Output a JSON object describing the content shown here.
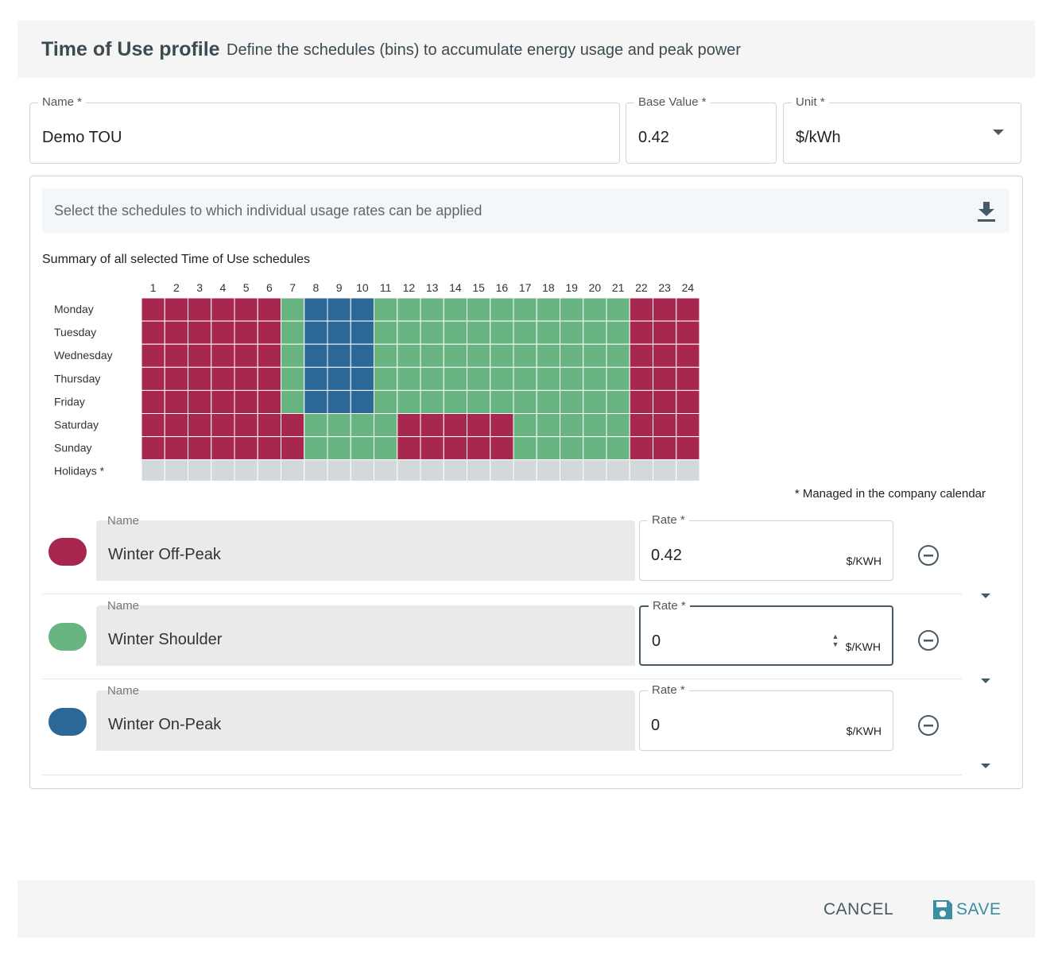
{
  "header": {
    "title": "Time of Use profile",
    "subtitle": "Define the schedules (bins) to accumulate energy usage and peak power"
  },
  "fields": {
    "name": {
      "label": "Name *",
      "value": "Demo TOU"
    },
    "base_value": {
      "label": "Base Value *",
      "value": 0.42
    },
    "unit": {
      "label": "Unit *",
      "value": "$/kWh"
    }
  },
  "info": "Select the schedules to which individual usage rates can be applied",
  "summary": {
    "title": "Summary of all selected Time of Use schedules",
    "hours": [
      1,
      2,
      3,
      4,
      5,
      6,
      7,
      8,
      9,
      10,
      11,
      12,
      13,
      14,
      15,
      16,
      17,
      18,
      19,
      20,
      21,
      22,
      23,
      24
    ],
    "days": [
      {
        "label": "Monday",
        "cells": [
          0,
          0,
          0,
          0,
          0,
          0,
          1,
          2,
          2,
          2,
          1,
          1,
          1,
          1,
          1,
          1,
          1,
          1,
          1,
          1,
          1,
          0,
          0,
          0
        ]
      },
      {
        "label": "Tuesday",
        "cells": [
          0,
          0,
          0,
          0,
          0,
          0,
          1,
          2,
          2,
          2,
          1,
          1,
          1,
          1,
          1,
          1,
          1,
          1,
          1,
          1,
          1,
          0,
          0,
          0
        ]
      },
      {
        "label": "Wednesday",
        "cells": [
          0,
          0,
          0,
          0,
          0,
          0,
          1,
          2,
          2,
          2,
          1,
          1,
          1,
          1,
          1,
          1,
          1,
          1,
          1,
          1,
          1,
          0,
          0,
          0
        ]
      },
      {
        "label": "Thursday",
        "cells": [
          0,
          0,
          0,
          0,
          0,
          0,
          1,
          2,
          2,
          2,
          1,
          1,
          1,
          1,
          1,
          1,
          1,
          1,
          1,
          1,
          1,
          0,
          0,
          0
        ]
      },
      {
        "label": "Friday",
        "cells": [
          0,
          0,
          0,
          0,
          0,
          0,
          1,
          2,
          2,
          2,
          1,
          1,
          1,
          1,
          1,
          1,
          1,
          1,
          1,
          1,
          1,
          0,
          0,
          0
        ]
      },
      {
        "label": "Saturday",
        "cells": [
          0,
          0,
          0,
          0,
          0,
          0,
          0,
          1,
          1,
          1,
          1,
          0,
          0,
          0,
          0,
          0,
          1,
          1,
          1,
          1,
          1,
          0,
          0,
          0
        ]
      },
      {
        "label": "Sunday",
        "cells": [
          0,
          0,
          0,
          0,
          0,
          0,
          0,
          1,
          1,
          1,
          1,
          0,
          0,
          0,
          0,
          0,
          1,
          1,
          1,
          1,
          1,
          0,
          0,
          0
        ]
      }
    ],
    "holidays": "Holidays *",
    "holiday_color": "#d3d8db",
    "footnote": "* Managed in the company calendar"
  },
  "schedules": [
    {
      "color": "#a8274f",
      "name_label": "Name",
      "name": "Winter Off-Peak",
      "rate_label": "Rate *",
      "rate": 0.42,
      "rate_unit": "$/KWH"
    },
    {
      "color": "#68b581",
      "name_label": "Name",
      "name": "Winter Shoulder",
      "rate_label": "Rate *",
      "rate": 0,
      "rate_unit": "$/KWH"
    },
    {
      "color": "#2b6797",
      "name_label": "Name",
      "name": "Winter On-Peak",
      "rate_label": "Rate *",
      "rate": 0,
      "rate_unit": "$/KWH"
    }
  ],
  "actions": {
    "cancel": "CANCEL",
    "save": "SAVE"
  }
}
